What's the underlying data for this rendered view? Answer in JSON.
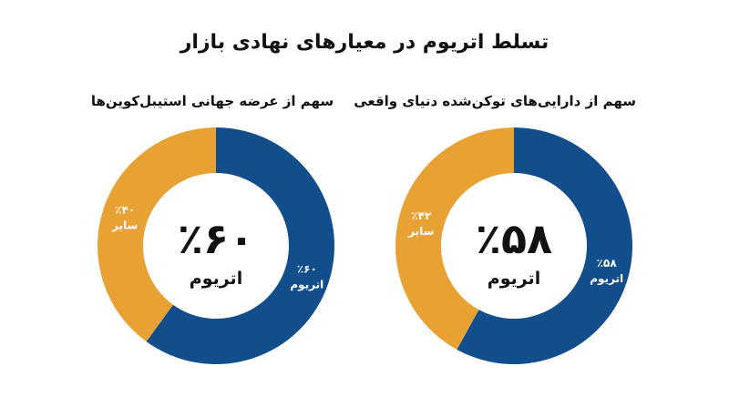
{
  "chart_data": {
    "title": "تسلط اتریوم در معیارهای نهادی بازار",
    "charts": [
      {
        "type": "pie",
        "title": "سهم از دارایی‌های توکن‌شده دنیای واقعی",
        "center_value": "٪۵۸",
        "center_label": "اتریوم",
        "slices": [
          {
            "label": "اتریوم",
            "value": 58,
            "value_label": "٪۵۸",
            "color": "#124d8c"
          },
          {
            "label": "سایر",
            "value": 42,
            "value_label": "٪۴۲",
            "color": "#e8a233"
          }
        ]
      },
      {
        "type": "pie",
        "title": "سهم از عرضه جهانی استیبل‌کوین‌ها",
        "center_value": "٪۶۰",
        "center_label": "اتریوم",
        "slices": [
          {
            "label": "اتریوم",
            "value": 60,
            "value_label": "٪۶۰",
            "color": "#124d8c"
          },
          {
            "label": "سایر",
            "value": 40,
            "value_label": "٪۴۰",
            "color": "#e8a233"
          }
        ]
      }
    ]
  }
}
